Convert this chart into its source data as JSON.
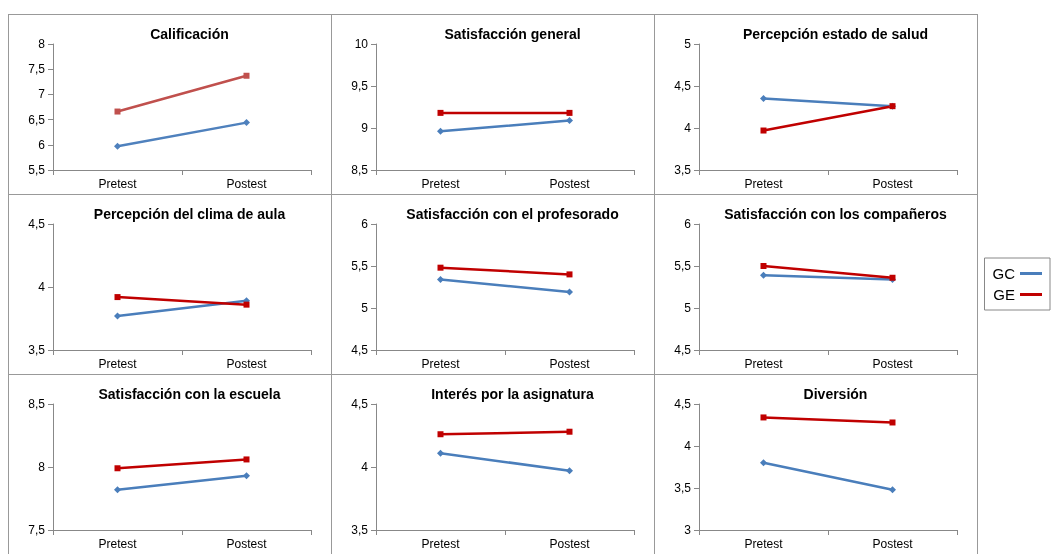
{
  "chart_data": [
    {
      "type": "line",
      "title": "Calificación",
      "categories": [
        "Pretest",
        "Postest"
      ],
      "ylim": [
        5.5,
        8
      ],
      "yticks": [
        {
          "value": 5.5,
          "label": "5,5"
        },
        {
          "value": 6,
          "label": "6"
        },
        {
          "value": 6.5,
          "label": "6,5"
        },
        {
          "value": 7,
          "label": "7"
        },
        {
          "value": 7.5,
          "label": "7,5"
        },
        {
          "value": 8,
          "label": "8"
        }
      ],
      "legend": false,
      "series": [
        {
          "color": "#4f81bd",
          "marker": "diamond",
          "values": [
            5.97,
            6.44
          ]
        },
        {
          "color": "#c0504d",
          "marker": "square",
          "values": [
            6.66,
            7.37
          ]
        }
      ]
    },
    {
      "type": "line",
      "title": "Satisfacción general",
      "categories": [
        "Pretest",
        "Postest"
      ],
      "ylim": [
        8.5,
        10
      ],
      "yticks": [
        {
          "value": 8.5,
          "label": "8,5"
        },
        {
          "value": 9,
          "label": "9"
        },
        {
          "value": 9.5,
          "label": "9,5"
        },
        {
          "value": 10,
          "label": "10"
        }
      ],
      "legend": false,
      "series": [
        {
          "color": "#4a7ebb",
          "marker": "diamond",
          "values": [
            8.96,
            9.09
          ]
        },
        {
          "color": "#c00000",
          "marker": "square",
          "values": [
            9.18,
            9.18
          ]
        }
      ]
    },
    {
      "type": "line",
      "title": "Percepción estado de salud",
      "categories": [
        "Pretest",
        "Postest"
      ],
      "ylim": [
        3.5,
        5
      ],
      "yticks": [
        {
          "value": 3.5,
          "label": "3,5"
        },
        {
          "value": 4,
          "label": "4"
        },
        {
          "value": 4.5,
          "label": "4,5"
        },
        {
          "value": 5,
          "label": "5"
        }
      ],
      "legend": false,
      "series": [
        {
          "color": "#4a7ebb",
          "marker": "diamond",
          "values": [
            4.35,
            4.26
          ]
        },
        {
          "color": "#c00000",
          "marker": "square",
          "values": [
            3.97,
            4.26
          ]
        }
      ]
    },
    {
      "type": "line",
      "title": "Percepción del clima de aula",
      "categories": [
        "Pretest",
        "Postest"
      ],
      "ylim": [
        3.5,
        4.5
      ],
      "yticks": [
        {
          "value": 3.5,
          "label": "3,5"
        },
        {
          "value": 4,
          "label": "4"
        },
        {
          "value": 4.5,
          "label": "4,5"
        }
      ],
      "legend": false,
      "series": [
        {
          "color": "#4a7ebb",
          "marker": "diamond",
          "values": [
            3.77,
            3.89
          ]
        },
        {
          "color": "#c00000",
          "marker": "square",
          "values": [
            3.92,
            3.86
          ]
        }
      ]
    },
    {
      "type": "line",
      "title": "Satisfacción con el profesorado",
      "categories": [
        "Pretest",
        "Postest"
      ],
      "ylim": [
        4.5,
        6
      ],
      "yticks": [
        {
          "value": 4.5,
          "label": "4,5"
        },
        {
          "value": 5,
          "label": "5"
        },
        {
          "value": 5.5,
          "label": "5,5"
        },
        {
          "value": 6,
          "label": "6"
        }
      ],
      "legend": false,
      "series": [
        {
          "color": "#4a7ebb",
          "marker": "diamond",
          "values": [
            5.34,
            5.19
          ]
        },
        {
          "color": "#c00000",
          "marker": "square",
          "values": [
            5.48,
            5.4
          ]
        }
      ]
    },
    {
      "type": "line",
      "title": "Satisfacción con los compañeros",
      "categories": [
        "Pretest",
        "Postest"
      ],
      "ylim": [
        4.5,
        6
      ],
      "yticks": [
        {
          "value": 4.5,
          "label": "4,5"
        },
        {
          "value": 5,
          "label": "5"
        },
        {
          "value": 5.5,
          "label": "5,5"
        },
        {
          "value": 6,
          "label": "6"
        }
      ],
      "legend": "right",
      "series": [
        {
          "name": "GC",
          "color": "#4a7ebb",
          "marker": "diamond",
          "values": [
            5.39,
            5.34
          ]
        },
        {
          "name": "GE",
          "color": "#c00000",
          "marker": "square",
          "values": [
            5.5,
            5.36
          ]
        }
      ]
    },
    {
      "type": "line",
      "title": "Satisfacción con la escuela",
      "categories": [
        "Pretest",
        "Postest"
      ],
      "ylim": [
        7.5,
        8.5
      ],
      "yticks": [
        {
          "value": 7.5,
          "label": "7,5"
        },
        {
          "value": 8,
          "label": "8"
        },
        {
          "value": 8.5,
          "label": "8,5"
        }
      ],
      "legend": false,
      "series": [
        {
          "color": "#4a7ebb",
          "marker": "diamond",
          "values": [
            7.82,
            7.93
          ]
        },
        {
          "color": "#c00000",
          "marker": "square",
          "values": [
            7.99,
            8.06
          ]
        }
      ]
    },
    {
      "type": "line",
      "title": "Interés por la asignatura",
      "categories": [
        "Pretest",
        "Postest"
      ],
      "ylim": [
        3.5,
        4.5
      ],
      "yticks": [
        {
          "value": 3.5,
          "label": "3,5"
        },
        {
          "value": 4,
          "label": "4"
        },
        {
          "value": 4.5,
          "label": "4,5"
        }
      ],
      "legend": false,
      "series": [
        {
          "color": "#4a7ebb",
          "marker": "diamond",
          "values": [
            4.11,
            3.97
          ]
        },
        {
          "color": "#c00000",
          "marker": "square",
          "values": [
            4.26,
            4.28
          ]
        }
      ]
    },
    {
      "type": "line",
      "title": "Diversión",
      "categories": [
        "Pretest",
        "Postest"
      ],
      "ylim": [
        3,
        4.5
      ],
      "yticks": [
        {
          "value": 3,
          "label": "3"
        },
        {
          "value": 3.5,
          "label": "3,5"
        },
        {
          "value": 4,
          "label": "4"
        },
        {
          "value": 4.5,
          "label": "4,5"
        }
      ],
      "legend": false,
      "series": [
        {
          "color": "#4a7ebb",
          "marker": "diamond",
          "values": [
            3.8,
            3.48
          ]
        },
        {
          "color": "#c00000",
          "marker": "square",
          "values": [
            4.34,
            4.28
          ]
        }
      ]
    }
  ]
}
